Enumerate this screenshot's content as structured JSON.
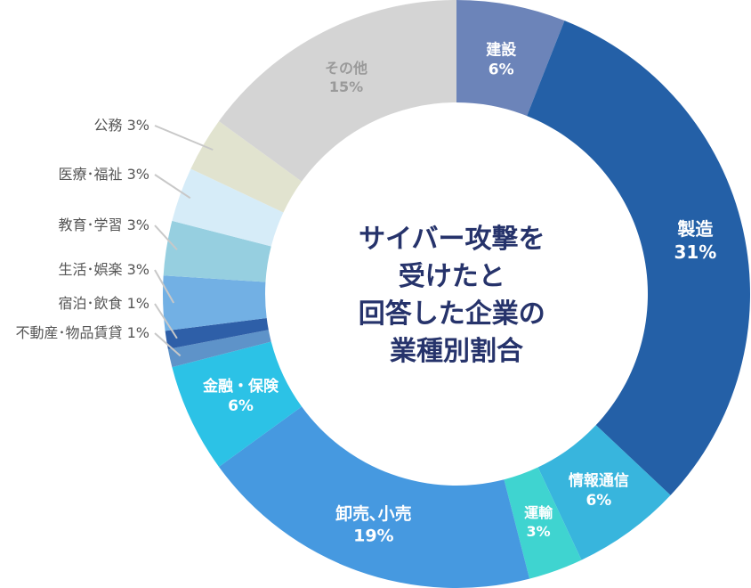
{
  "chart_data": {
    "type": "pie",
    "donut": true,
    "center_title": [
      "サイバー攻撃を",
      "受けたと",
      "回答した企業の",
      "業種別割合"
    ],
    "unit": "%",
    "legend": "none",
    "slices": [
      {
        "label": "建設",
        "value": 6,
        "display": "6%",
        "color": "#6c84b9",
        "placement": "inside"
      },
      {
        "label": "製造",
        "value": 31,
        "display": "31%",
        "color": "#2460a7",
        "placement": "inside"
      },
      {
        "label": "情報通信",
        "value": 6,
        "display": "6%",
        "color": "#38b5dd",
        "placement": "inside"
      },
      {
        "label": "運輸",
        "value": 3,
        "display": "3%",
        "color": "#3fd4d0",
        "placement": "inside"
      },
      {
        "label": "卸売､小売",
        "value": 19,
        "display": "19%",
        "color": "#4699e0",
        "placement": "inside"
      },
      {
        "label": "金融・保険",
        "value": 6,
        "display": "6%",
        "color": "#2cc2e6",
        "placement": "inside"
      },
      {
        "label": "不動産･物品賃貸",
        "value": 1,
        "display": "1%",
        "color": "#5e93c9",
        "placement": "outside"
      },
      {
        "label": "宿泊･飲食",
        "value": 1,
        "display": "1%",
        "color": "#2e5fa8",
        "placement": "outside"
      },
      {
        "label": "生活･娯楽",
        "value": 3,
        "display": "3%",
        "color": "#72b0e4",
        "placement": "outside"
      },
      {
        "label": "教育･学習",
        "value": 3,
        "display": "3%",
        "color": "#96cfe0",
        "placement": "outside"
      },
      {
        "label": "医療･福祉",
        "value": 3,
        "display": "3%",
        "color": "#d6ecf8",
        "placement": "outside"
      },
      {
        "label": "公務",
        "value": 3,
        "display": "3%",
        "color": "#e1e3cf",
        "placement": "outside"
      },
      {
        "label": "その他",
        "value": 15,
        "display": "15%",
        "color": "#d4d4d4",
        "placement": "inside"
      }
    ]
  }
}
